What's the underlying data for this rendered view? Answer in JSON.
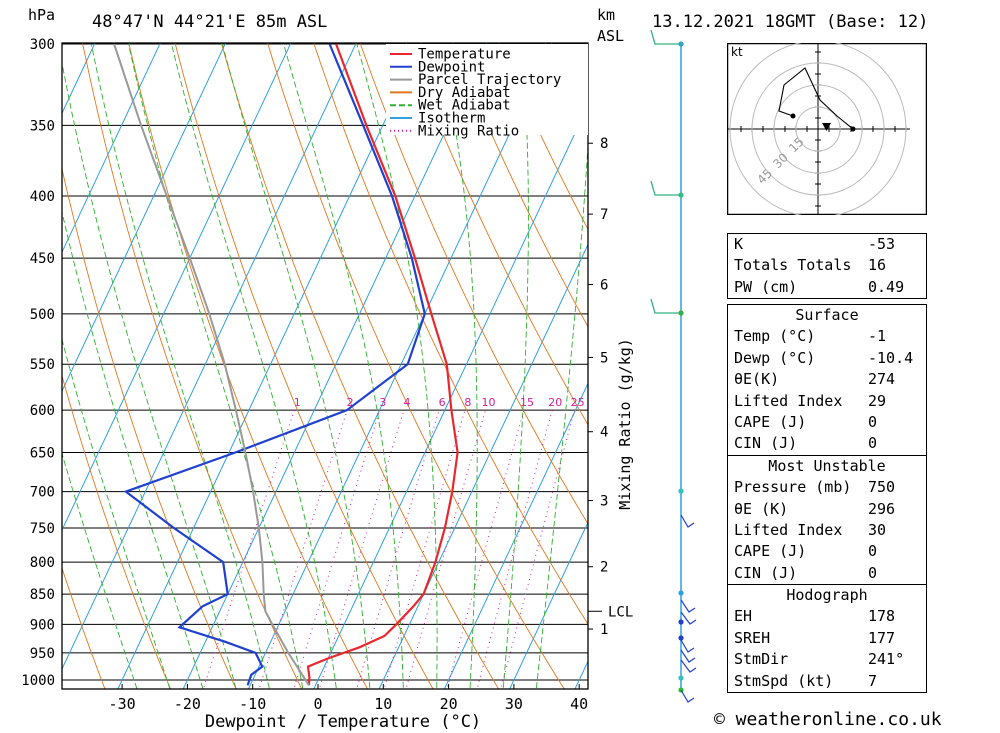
{
  "header": {
    "location": "48°47'N  44°21'E  85m  ASL",
    "date": "13.12.2021  18GMT  (Base: 12)",
    "unit_hpa": "hPa",
    "unit_km": "km",
    "unit_asl": "ASL"
  },
  "chart_data": {
    "type": "line",
    "xlabel": "Dewpoint / Temperature (°C)",
    "ylabel": "hPa",
    "right_label": "Mixing Ratio (g/kg)",
    "xlim": [
      -40,
      40
    ],
    "ylim": [
      1000,
      300
    ],
    "y_log_scale": true,
    "skew": true,
    "x_ticks": [
      -30,
      -20,
      -10,
      0,
      10,
      20,
      30,
      40
    ],
    "pressure_ticks": [
      300,
      350,
      400,
      450,
      500,
      550,
      600,
      650,
      700,
      750,
      800,
      850,
      900,
      950,
      1000
    ],
    "km_ticks": [
      {
        "label": "8",
        "p": 362
      },
      {
        "label": "7",
        "p": 414
      },
      {
        "label": "6",
        "p": 473
      },
      {
        "label": "5",
        "p": 543
      },
      {
        "label": "4",
        "p": 625
      },
      {
        "label": "3",
        "p": 712
      },
      {
        "label": "2",
        "p": 807
      },
      {
        "label": "1",
        "p": 908
      }
    ],
    "lcl_label": "LCL",
    "lcl_pressure": 878,
    "mixing_ratio_labels": [
      "1",
      "2",
      "3",
      "4",
      "6",
      "8",
      "10",
      "15",
      "20",
      "25"
    ],
    "legend": [
      {
        "name": "Temperature",
        "color": "#e8282e"
      },
      {
        "name": "Dewpoint",
        "color": "#2040d0"
      },
      {
        "name": "Parcel Trajectory",
        "color": "#999999"
      },
      {
        "name": "Dry Adiabat",
        "color": "#e07820"
      },
      {
        "name": "Wet Adiabat",
        "color": "#30b030"
      },
      {
        "name": "Isotherm",
        "color": "#30a0e0"
      },
      {
        "name": "Mixing Ratio",
        "color": "#d0209a"
      }
    ],
    "series": [
      {
        "name": "Temperature",
        "color": "#e8282e",
        "points": [
          [
            1010,
            -1
          ],
          [
            995,
            -1.5
          ],
          [
            975,
            -2.5
          ],
          [
            960,
            0
          ],
          [
            940,
            4
          ],
          [
            920,
            7
          ],
          [
            900,
            8
          ],
          [
            870,
            9.3
          ],
          [
            850,
            10
          ],
          [
            800,
            9.5
          ],
          [
            750,
            8.5
          ],
          [
            700,
            7
          ],
          [
            650,
            5
          ],
          [
            600,
            1
          ],
          [
            550,
            -3
          ],
          [
            500,
            -9
          ],
          [
            450,
            -15.5
          ],
          [
            400,
            -23
          ],
          [
            350,
            -32.5
          ],
          [
            300,
            -43
          ]
        ]
      },
      {
        "name": "Dewpoint",
        "color": "#2040d0",
        "points": [
          [
            1010,
            -10.4
          ],
          [
            990,
            -10.6
          ],
          [
            975,
            -9.5
          ],
          [
            950,
            -11.5
          ],
          [
            930,
            -17
          ],
          [
            905,
            -25
          ],
          [
            870,
            -23
          ],
          [
            850,
            -20
          ],
          [
            800,
            -23
          ],
          [
            750,
            -33
          ],
          [
            700,
            -43
          ],
          [
            650,
            -29
          ],
          [
            600,
            -15
          ],
          [
            550,
            -9
          ],
          [
            500,
            -10
          ],
          [
            450,
            -16
          ],
          [
            400,
            -23.5
          ],
          [
            350,
            -33
          ],
          [
            300,
            -44
          ]
        ]
      },
      {
        "name": "Parcel Trajectory",
        "color": "#999999",
        "points": [
          [
            1010,
            -1
          ],
          [
            950,
            -6.5
          ],
          [
            900,
            -11
          ],
          [
            878,
            -13
          ],
          [
            850,
            -14.5
          ],
          [
            800,
            -17
          ],
          [
            750,
            -20
          ],
          [
            700,
            -23.5
          ],
          [
            650,
            -27.5
          ],
          [
            600,
            -32
          ],
          [
            550,
            -37
          ],
          [
            500,
            -43
          ],
          [
            450,
            -50
          ],
          [
            400,
            -58
          ],
          [
            350,
            -67
          ],
          [
            300,
            -77
          ]
        ]
      }
    ]
  },
  "hodograph": {
    "unit": "kt",
    "ring_labels": [
      "15",
      "30",
      "45"
    ]
  },
  "indices": {
    "k_label": "K",
    "k_value": "-53",
    "tt_label": "Totals Totals",
    "tt_value": "16",
    "pw_label": "PW (cm)",
    "pw_value": "0.49"
  },
  "surface": {
    "title": "Surface",
    "rows": [
      {
        "label": "Temp (°C)",
        "value": "-1"
      },
      {
        "label": "Dewp (°C)",
        "value": "-10.4"
      },
      {
        "label": "θE(K)",
        "value": "274"
      },
      {
        "label": "Lifted Index",
        "value": "29"
      },
      {
        "label": "CAPE (J)",
        "value": "0"
      },
      {
        "label": "CIN (J)",
        "value": "0"
      }
    ]
  },
  "most_unstable": {
    "title": "Most Unstable",
    "rows": [
      {
        "label": "Pressure (mb)",
        "value": "750"
      },
      {
        "label": "θE (K)",
        "value": "296"
      },
      {
        "label": "Lifted Index",
        "value": "30"
      },
      {
        "label": "CAPE (J)",
        "value": "0"
      },
      {
        "label": "CIN (J)",
        "value": "0"
      }
    ]
  },
  "hodograph_table": {
    "title": "Hodograph",
    "rows": [
      {
        "label": "EH",
        "value": "178"
      },
      {
        "label": "SREH",
        "value": "177"
      },
      {
        "label": "StmDir",
        "value": "241°"
      },
      {
        "label": "StmSpd (kt)",
        "value": "7"
      }
    ]
  },
  "footer": {
    "copyright": "© weatheronline.co.uk"
  }
}
